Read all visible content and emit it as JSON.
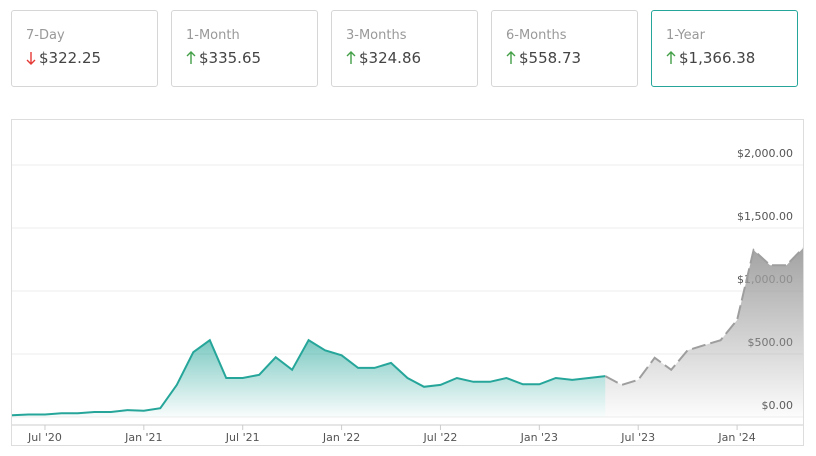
{
  "cards": [
    {
      "label": "7-Day",
      "value": "$322.25",
      "direction": "down",
      "selected": false
    },
    {
      "label": "1-Month",
      "value": "$335.65",
      "direction": "up",
      "selected": false
    },
    {
      "label": "3-Months",
      "value": "$324.86",
      "direction": "up",
      "selected": false
    },
    {
      "label": "6-Months",
      "value": "$558.73",
      "direction": "up",
      "selected": false
    },
    {
      "label": "1-Year",
      "value": "$1,366.38",
      "direction": "up",
      "selected": true
    }
  ],
  "chart_data": {
    "type": "area",
    "x": [
      "2020-05",
      "2020-06",
      "2020-07",
      "2020-08",
      "2020-09",
      "2020-10",
      "2020-11",
      "2020-12",
      "2021-01",
      "2021-02",
      "2021-03",
      "2021-04",
      "2021-05",
      "2021-06",
      "2021-07",
      "2021-08",
      "2021-09",
      "2021-10",
      "2021-11",
      "2021-12",
      "2022-01",
      "2022-02",
      "2022-03",
      "2022-04",
      "2022-05",
      "2022-06",
      "2022-07",
      "2022-08",
      "2022-09",
      "2022-10",
      "2022-11",
      "2022-12",
      "2023-01",
      "2023-02",
      "2023-03",
      "2023-04",
      "2023-05",
      "2023-06",
      "2023-07",
      "2023-08",
      "2023-09",
      "2023-10",
      "2023-11",
      "2023-12",
      "2024-01",
      "2024-02",
      "2024-03",
      "2024-04",
      "2024-05"
    ],
    "series": [
      {
        "color": "#26a69a",
        "dashed": false,
        "values": [
          15,
          20,
          20,
          30,
          30,
          40,
          40,
          55,
          50,
          70,
          255,
          515,
          610,
          310,
          310,
          335,
          475,
          375,
          610,
          530,
          490,
          390,
          390,
          430,
          310,
          240,
          255,
          310,
          280,
          280,
          310,
          260,
          260,
          310,
          295,
          310,
          325,
          null,
          null,
          null,
          null,
          null,
          null,
          null,
          null,
          null,
          null,
          null,
          null
        ]
      },
      {
        "color": "#9e9e9e",
        "dashed": true,
        "values": [
          null,
          null,
          null,
          null,
          null,
          null,
          null,
          null,
          null,
          null,
          null,
          null,
          null,
          null,
          null,
          null,
          null,
          null,
          null,
          null,
          null,
          null,
          null,
          null,
          null,
          null,
          null,
          null,
          null,
          null,
          null,
          null,
          null,
          null,
          null,
          null,
          325,
          255,
          295,
          470,
          375,
          530,
          570,
          610,
          770,
          1325,
          1205,
          1205,
          1340
        ]
      }
    ],
    "xlim": [
      "2020-05",
      "2024-05"
    ],
    "xticks": [
      {
        "value": "2020-07",
        "label": "Jul '20"
      },
      {
        "value": "2021-01",
        "label": "Jan '21"
      },
      {
        "value": "2021-07",
        "label": "Jul '21"
      },
      {
        "value": "2022-01",
        "label": "Jan '22"
      },
      {
        "value": "2022-07",
        "label": "Jul '22"
      },
      {
        "value": "2023-01",
        "label": "Jan '23"
      },
      {
        "value": "2023-07",
        "label": "Jul '23"
      },
      {
        "value": "2024-01",
        "label": "Jan '24"
      }
    ],
    "ylim": [
      -63,
      2357
    ],
    "yticks": [
      {
        "value": 0,
        "label": "$0.00"
      },
      {
        "value": 500,
        "label": "$500.00"
      },
      {
        "value": 1000,
        "label": "$1,000.00"
      },
      {
        "value": 1500,
        "label": "$1,500.00"
      },
      {
        "value": 2000,
        "label": "$2,000.00"
      }
    ],
    "grid": true
  }
}
